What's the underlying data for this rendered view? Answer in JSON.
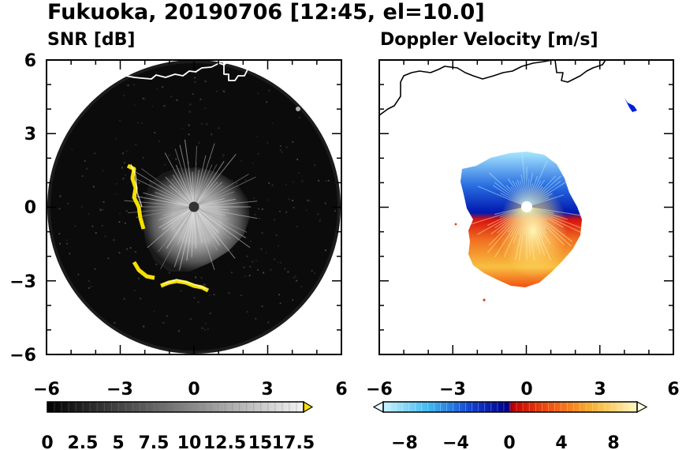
{
  "title": "Fukuoka, 20190706 [12:45, el=10.0]",
  "chart_data": [
    {
      "type": "heatmap",
      "title": "SNR [dB]",
      "xlim": [
        -6,
        6
      ],
      "ylim": [
        -6,
        6
      ],
      "xticks": [
        "−6",
        "−3",
        "0",
        "3",
        "6"
      ],
      "yticks": [
        "6",
        "3",
        "0",
        "−3",
        "−6"
      ],
      "grid": false,
      "colorbar": {
        "ticks": [
          "0",
          "2.5",
          "5",
          "7.5",
          "10",
          "12.5",
          "15",
          "17.5"
        ],
        "range": [
          0,
          18
        ],
        "extend": "max",
        "colors": {
          "low": "#000000",
          "high": "#ffffff",
          "over": "#ffe000"
        }
      },
      "features": {
        "scan_radius_km": 5.9,
        "echo_center": [
          -0.6,
          0.3
        ],
        "echo_radius_km": 2.2,
        "yellow_arc": "west-southwest edge"
      }
    },
    {
      "type": "heatmap",
      "title": "Doppler Velocity [m/s]",
      "xlim": [
        -6,
        6
      ],
      "ylim": [
        -6,
        6
      ],
      "xticks": [
        "−6",
        "−3",
        "0",
        "3",
        "6"
      ],
      "yticks": [
        "6",
        "3",
        "0",
        "−3",
        "−6"
      ],
      "grid": false,
      "colorbar": {
        "ticks": [
          "−8",
          "−4",
          "0",
          "4",
          "8"
        ],
        "range": [
          -10,
          10
        ],
        "extend": "both",
        "colors": {
          "negative": "#0020c0",
          "zero": "#e00000",
          "positive": "#fff060"
        }
      },
      "features": {
        "approaching_sector": "north (blue)",
        "receding_sector": "south (red-orange-yellow)"
      }
    }
  ]
}
